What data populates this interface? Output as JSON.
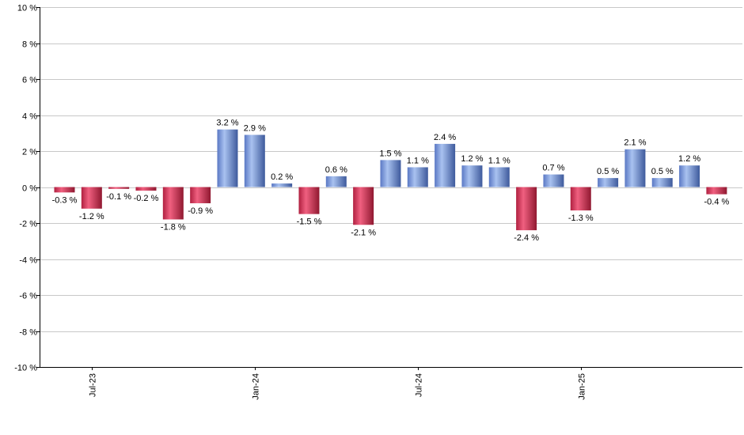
{
  "chart_data": {
    "type": "bar",
    "title": "",
    "xlabel": "",
    "ylabel": "",
    "ylim": [
      -10,
      10
    ],
    "y_ticks": [
      10,
      8,
      6,
      4,
      2,
      0,
      -2,
      -4,
      -6,
      -8,
      -10
    ],
    "y_tick_labels": [
      "10 %",
      "8 %",
      "6 %",
      "4 %",
      "2 %",
      "0 %",
      "-2 %",
      "-4 %",
      "-6 %",
      "-8 %",
      "-10 %"
    ],
    "grid": true,
    "categories": [
      "2023-06",
      "2023-07",
      "2023-08",
      "2023-09",
      "2023-10",
      "2023-11",
      "2023-12",
      "2024-01",
      "2024-02",
      "2024-03",
      "2024-04",
      "2024-05",
      "2024-06",
      "2024-07",
      "2024-08",
      "2024-09",
      "2024-10",
      "2024-11",
      "2024-12",
      "2025-01",
      "2025-02",
      "2025-03",
      "2025-04",
      "2025-05",
      "2025-06"
    ],
    "values": [
      -0.3,
      -1.2,
      -0.1,
      -0.2,
      -1.8,
      -0.9,
      3.2,
      2.9,
      0.2,
      -1.5,
      0.6,
      -2.1,
      1.5,
      1.1,
      2.4,
      1.2,
      1.1,
      -2.4,
      0.7,
      -1.3,
      0.5,
      2.1,
      0.5,
      1.2,
      -0.4
    ],
    "value_labels": [
      "-0.3 %",
      "-1.2 %",
      "-0.1 %",
      "-0.2 %",
      "-1.8 %",
      "-0.9 %",
      "3.2 %",
      "2.9 %",
      "0.2 %",
      "-1.5 %",
      "0.6 %",
      "-2.1 %",
      "1.5 %",
      "1.1 %",
      "2.4 %",
      "1.2 %",
      "1.1 %",
      "-2.4 %",
      "0.7 %",
      "-1.3 %",
      "0.5 %",
      "2.1 %",
      "0.5 %",
      "1.2 %",
      "-0.4 %"
    ],
    "x_tick_labels": [
      {
        "category": "2023-07",
        "label": "Jul-23"
      },
      {
        "category": "2024-01",
        "label": "Jan-24"
      },
      {
        "category": "2024-07",
        "label": "Jul-24"
      },
      {
        "category": "2025-01",
        "label": "Jan-25"
      }
    ],
    "colors": {
      "positive": "#7090d8",
      "negative": "#c8304c",
      "grid": "#c8c8c8",
      "axis": "#000000"
    }
  }
}
